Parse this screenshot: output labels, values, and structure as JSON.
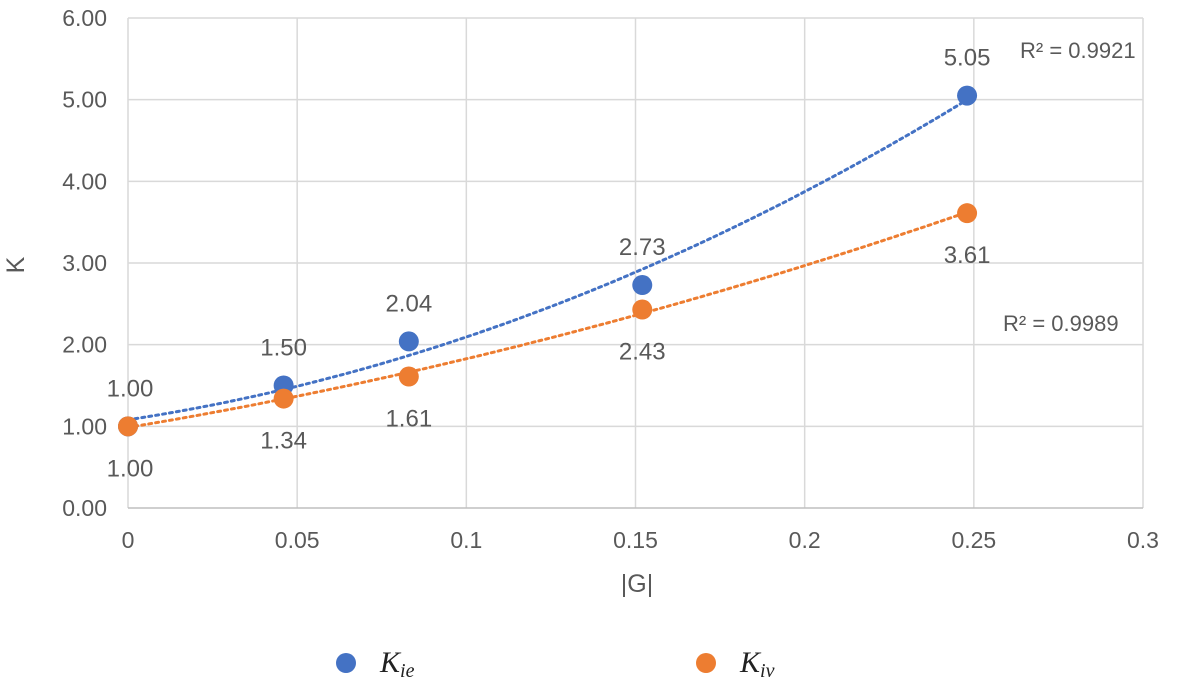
{
  "chart_data": {
    "type": "scatter",
    "xlabel": "|G|",
    "ylabel": "K",
    "xlim": [
      0,
      0.3
    ],
    "ylim": [
      0,
      6
    ],
    "x_ticks": [
      "0",
      "0.05",
      "0.1",
      "0.15",
      "0.2",
      "0.25",
      "0.3"
    ],
    "y_ticks": [
      "0.00",
      "1.00",
      "2.00",
      "3.00",
      "4.00",
      "5.00",
      "6.00"
    ],
    "grid": true,
    "legend_position": "bottom",
    "series": [
      {
        "name_main": "K",
        "name_sub": "ie",
        "color": "#4472C4",
        "trendline": "dotted",
        "r_squared": "R² = 0.9921",
        "points": [
          {
            "x": 0,
            "y": 1.0,
            "label": "1.00"
          },
          {
            "x": 0.046,
            "y": 1.5,
            "label": "1.50"
          },
          {
            "x": 0.083,
            "y": 2.04,
            "label": "2.04"
          },
          {
            "x": 0.152,
            "y": 2.73,
            "label": "2.73"
          },
          {
            "x": 0.248,
            "y": 5.05,
            "label": "5.05"
          }
        ]
      },
      {
        "name_main": "K",
        "name_sub": "iv",
        "color": "#ED7D31",
        "trendline": "dotted",
        "r_squared": "R² = 0.9989",
        "points": [
          {
            "x": 0,
            "y": 1.0,
            "label": "1.00"
          },
          {
            "x": 0.046,
            "y": 1.34,
            "label": "1.34"
          },
          {
            "x": 0.083,
            "y": 1.61,
            "label": "1.61"
          },
          {
            "x": 0.152,
            "y": 2.43,
            "label": "2.43"
          },
          {
            "x": 0.248,
            "y": 3.61,
            "label": "3.61"
          }
        ]
      }
    ]
  }
}
